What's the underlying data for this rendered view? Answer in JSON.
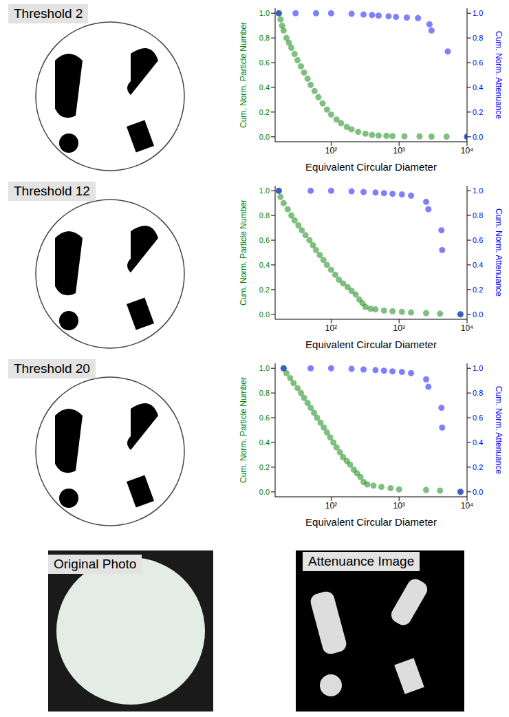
{
  "chart_data": [
    {
      "type": "scatter",
      "title": "Threshold 2",
      "x_label": "Equivalent Circular Diameter",
      "y_label": "Cum. Norm. Particle Number",
      "y2_label": "Cum. Norm. Attenuance",
      "log": "x",
      "xlim": [
        15,
        10000
      ],
      "xticks": [
        {
          "value": 100,
          "label": "10²"
        },
        {
          "value": 1000,
          "label": "10³"
        },
        {
          "value": 10000,
          "label": "10⁴"
        }
      ],
      "ylim": [
        -0.04,
        1.04
      ],
      "yticks": [
        {
          "value": 0,
          "label": "0.0"
        },
        {
          "value": 0.2,
          "label": "0.2"
        },
        {
          "value": 0.4,
          "label": "0.4"
        },
        {
          "value": 0.6,
          "label": "0.6"
        },
        {
          "value": 0.8,
          "label": "0.8"
        },
        {
          "value": 1,
          "label": "1.0"
        }
      ],
      "y2lim": [
        -0.04,
        1.04
      ],
      "y2ticks": [
        {
          "value": 0,
          "label": "0.0"
        },
        {
          "value": 0.2,
          "label": "0.2"
        },
        {
          "value": 0.4,
          "label": "0.4"
        },
        {
          "value": 0.6,
          "label": "0.6"
        },
        {
          "value": 0.8,
          "label": "0.8"
        },
        {
          "value": 1,
          "label": "1.0"
        }
      ],
      "series": [
        {
          "color": "#008000",
          "marker": "circle",
          "x": [
            17,
            18,
            19,
            20,
            22,
            24,
            26,
            29,
            32,
            36,
            40,
            45,
            50,
            57,
            65,
            75,
            87,
            100,
            120,
            140,
            170,
            200,
            250,
            320,
            400,
            500,
            650,
            800,
            1200,
            2000,
            3000,
            5000,
            10000
          ],
          "values": [
            1.0,
            0.95,
            0.9,
            0.86,
            0.8,
            0.76,
            0.72,
            0.67,
            0.62,
            0.57,
            0.52,
            0.47,
            0.42,
            0.37,
            0.32,
            0.27,
            0.22,
            0.18,
            0.14,
            0.11,
            0.08,
            0.06,
            0.04,
            0.025,
            0.015,
            0.01,
            0.008,
            0.006,
            0.004,
            0.003,
            0.002,
            0.001,
            0.0
          ]
        },
        {
          "color": "#0000ff",
          "marker": "circle",
          "axis": "y2",
          "x": [
            17,
            30,
            60,
            100,
            200,
            300,
            400,
            500,
            700,
            900,
            1300,
            1900,
            2800,
            3000,
            5200,
            10000
          ],
          "values": [
            1.0,
            1.0,
            1.0,
            1.0,
            0.995,
            0.99,
            0.985,
            0.98,
            0.975,
            0.97,
            0.965,
            0.96,
            0.91,
            0.86,
            0.69,
            0.0
          ]
        }
      ]
    },
    {
      "type": "scatter",
      "title": "Threshold 12",
      "x_label": "Equivalent Circular Diameter",
      "y_label": "Cum. Norm. Particle Number",
      "y2_label": "Cum. Norm. Attenuance",
      "log": "x",
      "xlim": [
        15,
        10000
      ],
      "xticks": [
        {
          "value": 100,
          "label": "10²"
        },
        {
          "value": 1000,
          "label": "10³"
        },
        {
          "value": 10000,
          "label": "10⁴"
        }
      ],
      "ylim": [
        -0.04,
        1.04
      ],
      "yticks": [
        {
          "value": 0,
          "label": "0.0"
        },
        {
          "value": 0.2,
          "label": "0.2"
        },
        {
          "value": 0.4,
          "label": "0.4"
        },
        {
          "value": 0.6,
          "label": "0.6"
        },
        {
          "value": 0.8,
          "label": "0.8"
        },
        {
          "value": 1,
          "label": "1.0"
        }
      ],
      "y2lim": [
        -0.04,
        1.04
      ],
      "y2ticks": [
        {
          "value": 0,
          "label": "0.0"
        },
        {
          "value": 0.2,
          "label": "0.2"
        },
        {
          "value": 0.4,
          "label": "0.4"
        },
        {
          "value": 0.6,
          "label": "0.6"
        },
        {
          "value": 0.8,
          "label": "0.8"
        },
        {
          "value": 1,
          "label": "1.0"
        }
      ],
      "series": [
        {
          "color": "#008000",
          "marker": "circle",
          "x": [
            17,
            18,
            20,
            23,
            26,
            29,
            33,
            37,
            42,
            48,
            54,
            60,
            68,
            77,
            87,
            100,
            115,
            130,
            150,
            175,
            200,
            230,
            260,
            290,
            320,
            380,
            450,
            600,
            800,
            1100,
            1500,
            2500,
            4000,
            8000
          ],
          "values": [
            1.0,
            0.95,
            0.9,
            0.85,
            0.8,
            0.76,
            0.72,
            0.68,
            0.64,
            0.6,
            0.56,
            0.52,
            0.48,
            0.44,
            0.4,
            0.36,
            0.32,
            0.28,
            0.25,
            0.22,
            0.19,
            0.16,
            0.12,
            0.09,
            0.06,
            0.045,
            0.04,
            0.03,
            0.025,
            0.02,
            0.015,
            0.01,
            0.005,
            0.0
          ]
        },
        {
          "color": "#0000ff",
          "marker": "circle",
          "axis": "y2",
          "x": [
            17,
            50,
            100,
            200,
            300,
            450,
            600,
            800,
            1100,
            1500,
            2500,
            2700,
            4200,
            4300,
            8000
          ],
          "values": [
            1.0,
            1.0,
            1.0,
            0.995,
            0.99,
            0.985,
            0.98,
            0.975,
            0.97,
            0.96,
            0.91,
            0.85,
            0.68,
            0.52,
            0.0
          ]
        }
      ]
    },
    {
      "type": "scatter",
      "title": "Threshold 20",
      "x_label": "Equivalent Circular Diameter",
      "y_label": "Cum. Norm. Particle Number",
      "y2_label": "Cum. Norm. Attenuance",
      "log": "x",
      "xlim": [
        15,
        10000
      ],
      "xticks": [
        {
          "value": 100,
          "label": "10²"
        },
        {
          "value": 1000,
          "label": "10³"
        },
        {
          "value": 10000,
          "label": "10⁴"
        }
      ],
      "ylim": [
        -0.04,
        1.04
      ],
      "yticks": [
        {
          "value": 0,
          "label": "0.0"
        },
        {
          "value": 0.2,
          "label": "0.2"
        },
        {
          "value": 0.4,
          "label": "0.4"
        },
        {
          "value": 0.6,
          "label": "0.6"
        },
        {
          "value": 0.8,
          "label": "0.8"
        },
        {
          "value": 1,
          "label": "1.0"
        }
      ],
      "y2lim": [
        -0.04,
        1.04
      ],
      "y2ticks": [
        {
          "value": 0,
          "label": "0.0"
        },
        {
          "value": 0.2,
          "label": "0.2"
        },
        {
          "value": 0.4,
          "label": "0.4"
        },
        {
          "value": 0.6,
          "label": "0.6"
        },
        {
          "value": 0.8,
          "label": "0.8"
        },
        {
          "value": 1,
          "label": "1.0"
        }
      ],
      "series": [
        {
          "color": "#008000",
          "marker": "circle",
          "x": [
            20,
            22,
            25,
            28,
            32,
            36,
            40,
            45,
            50,
            56,
            62,
            70,
            78,
            87,
            97,
            108,
            120,
            135,
            150,
            170,
            190,
            215,
            240,
            270,
            300,
            340,
            420,
            550,
            750,
            1000,
            2500,
            4000,
            8000
          ],
          "values": [
            1.0,
            0.96,
            0.92,
            0.88,
            0.84,
            0.8,
            0.76,
            0.72,
            0.68,
            0.64,
            0.6,
            0.56,
            0.52,
            0.48,
            0.44,
            0.4,
            0.36,
            0.32,
            0.28,
            0.25,
            0.22,
            0.18,
            0.15,
            0.12,
            0.08,
            0.06,
            0.05,
            0.04,
            0.03,
            0.02,
            0.015,
            0.01,
            0.0
          ]
        },
        {
          "color": "#0000ff",
          "marker": "circle",
          "axis": "y2",
          "x": [
            20,
            50,
            100,
            200,
            300,
            450,
            600,
            800,
            1100,
            1500,
            2500,
            2700,
            4200,
            4300,
            8000
          ],
          "values": [
            1.0,
            1.0,
            1.0,
            0.995,
            0.99,
            0.985,
            0.98,
            0.975,
            0.97,
            0.96,
            0.91,
            0.85,
            0.68,
            0.52,
            0.0
          ]
        }
      ]
    }
  ],
  "images": [
    "Original Photo",
    "Attenuance Image"
  ]
}
